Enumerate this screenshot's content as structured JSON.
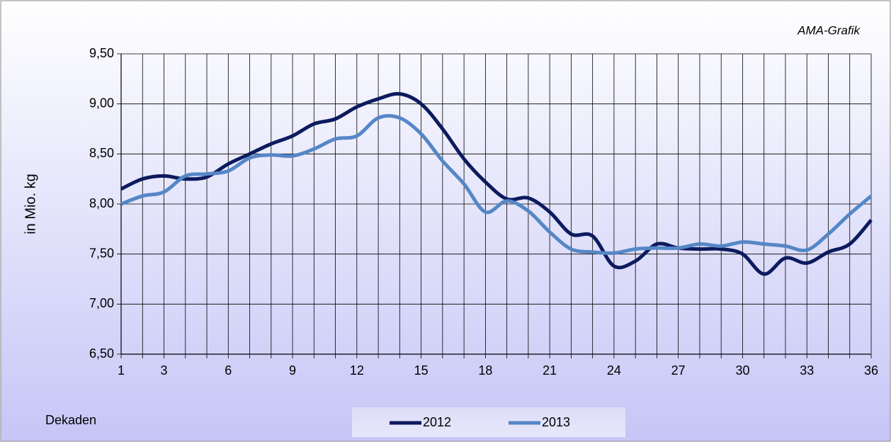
{
  "chart_data": {
    "type": "line",
    "source": "AMA-Grafik",
    "y_label": "in Mio. kg",
    "x_label": "Dekaden",
    "x": [
      1,
      2,
      3,
      4,
      5,
      6,
      7,
      8,
      9,
      10,
      11,
      12,
      13,
      14,
      15,
      16,
      17,
      18,
      19,
      20,
      21,
      22,
      23,
      24,
      25,
      26,
      27,
      28,
      29,
      30,
      31,
      32,
      33,
      34,
      35,
      36
    ],
    "xlim": [
      1,
      36
    ],
    "xticks": [
      1,
      3,
      6,
      9,
      12,
      15,
      18,
      21,
      24,
      27,
      30,
      33,
      36
    ],
    "ylim": [
      6.5,
      9.5
    ],
    "yticks": [
      {
        "value": 6.5,
        "label": "6,50"
      },
      {
        "value": 7,
        "label": "7,00"
      },
      {
        "value": 7.5,
        "label": "7,50"
      },
      {
        "value": 8,
        "label": "8,00"
      },
      {
        "value": 8.5,
        "label": "8,50"
      },
      {
        "value": 9,
        "label": "9,00"
      },
      {
        "value": 9.5,
        "label": "9,50"
      }
    ],
    "grid": true,
    "legend": "bottom",
    "series": [
      {
        "name": "2012",
        "color": "#0c1b5e",
        "values": [
          8.15,
          8.25,
          8.28,
          8.25,
          8.27,
          8.4,
          8.5,
          8.6,
          8.68,
          8.8,
          8.85,
          8.97,
          9.05,
          9.1,
          9.0,
          8.75,
          8.45,
          8.22,
          8.05,
          8.06,
          7.92,
          7.7,
          7.68,
          7.38,
          7.43,
          7.6,
          7.56,
          7.55,
          7.55,
          7.5,
          7.3,
          7.46,
          7.41,
          7.52,
          7.6,
          7.84
        ]
      },
      {
        "name": "2013",
        "color": "#5587c6",
        "values": [
          8.0,
          8.08,
          8.12,
          8.28,
          8.3,
          8.33,
          8.46,
          8.49,
          8.48,
          8.55,
          8.65,
          8.68,
          8.86,
          8.86,
          8.7,
          8.43,
          8.2,
          7.92,
          8.03,
          7.93,
          7.72,
          7.55,
          7.52,
          7.51,
          7.55,
          7.56,
          7.56,
          7.6,
          7.58,
          7.62,
          7.6,
          7.58,
          7.54,
          7.7,
          7.9,
          8.08
        ]
      }
    ]
  }
}
